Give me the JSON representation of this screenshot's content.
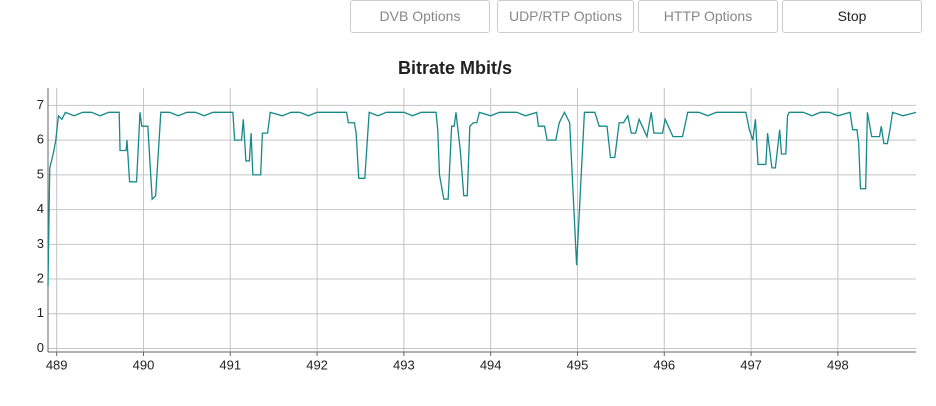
{
  "buttons": [
    "DVB Options",
    "UDP/RTP Options",
    "HTTP Options",
    "Stop"
  ],
  "chart_data": {
    "type": "line",
    "title": "Bitrate Mbit/s",
    "x": [
      488.9,
      488.92,
      488.96,
      488.99,
      489.02,
      489.06,
      489.1,
      489.2,
      489.3,
      489.4,
      489.5,
      489.6,
      489.72,
      489.73,
      489.8,
      489.81,
      489.84,
      489.92,
      489.96,
      489.98,
      490.05,
      490.1,
      490.14,
      490.2,
      490.3,
      490.4,
      490.5,
      490.6,
      490.7,
      490.8,
      490.9,
      491.03,
      491.05,
      491.13,
      491.15,
      491.18,
      491.22,
      491.24,
      491.26,
      491.35,
      491.37,
      491.43,
      491.46,
      491.6,
      491.7,
      491.8,
      491.9,
      492.0,
      492.1,
      492.2,
      492.34,
      492.36,
      492.43,
      492.45,
      492.48,
      492.55,
      492.6,
      492.7,
      492.8,
      492.9,
      493.0,
      493.1,
      493.2,
      493.37,
      493.39,
      493.41,
      493.46,
      493.51,
      493.55,
      493.58,
      493.6,
      493.65,
      493.69,
      493.73,
      493.76,
      493.8,
      493.84,
      493.87,
      494.0,
      494.1,
      494.2,
      494.3,
      494.4,
      494.53,
      494.55,
      494.62,
      494.65,
      494.75,
      494.79,
      494.85,
      494.91,
      494.99,
      495.08,
      495.2,
      495.25,
      495.34,
      495.38,
      495.43,
      495.48,
      495.53,
      495.58,
      495.62,
      495.67,
      495.71,
      495.8,
      495.85,
      495.88,
      495.98,
      496.01,
      496.1,
      496.21,
      496.27,
      496.4,
      496.5,
      496.6,
      496.7,
      496.94,
      496.98,
      497.02,
      497.05,
      497.08,
      497.17,
      497.19,
      497.24,
      497.28,
      497.33,
      497.35,
      497.4,
      497.42,
      497.44,
      497.6,
      497.7,
      497.8,
      497.9,
      498.0,
      498.14,
      498.17,
      498.22,
      498.24,
      498.26,
      498.32,
      498.34,
      498.39,
      498.48,
      498.5,
      498.53,
      498.57,
      498.6,
      498.63,
      498.75,
      498.9
    ],
    "series": [
      {
        "name": "Bitrate",
        "color": "#17898a",
        "values": [
          1.8,
          5.2,
          5.6,
          6.0,
          6.7,
          6.6,
          6.8,
          6.7,
          6.8,
          6.8,
          6.7,
          6.8,
          6.8,
          5.7,
          5.7,
          6.0,
          4.8,
          4.8,
          6.8,
          6.4,
          6.4,
          4.3,
          4.4,
          6.8,
          6.8,
          6.7,
          6.8,
          6.8,
          6.7,
          6.8,
          6.8,
          6.8,
          6.0,
          6.0,
          6.6,
          5.4,
          5.4,
          6.2,
          5.0,
          5.0,
          6.2,
          6.2,
          6.8,
          6.7,
          6.8,
          6.8,
          6.7,
          6.8,
          6.8,
          6.8,
          6.8,
          6.5,
          6.5,
          6.2,
          4.9,
          4.9,
          6.8,
          6.7,
          6.8,
          6.8,
          6.8,
          6.7,
          6.8,
          6.8,
          6.3,
          5.0,
          4.3,
          4.3,
          6.4,
          6.4,
          6.8,
          5.7,
          4.4,
          4.4,
          6.4,
          6.5,
          6.5,
          6.8,
          6.7,
          6.8,
          6.8,
          6.8,
          6.7,
          6.8,
          6.4,
          6.4,
          6.0,
          6.0,
          6.5,
          6.8,
          6.5,
          2.4,
          6.8,
          6.8,
          6.4,
          6.4,
          5.5,
          5.5,
          6.5,
          6.5,
          6.7,
          6.2,
          6.2,
          6.6,
          6.1,
          6.8,
          6.2,
          6.2,
          6.6,
          6.1,
          6.1,
          6.8,
          6.8,
          6.7,
          6.8,
          6.8,
          6.8,
          6.3,
          6.0,
          6.6,
          5.3,
          5.3,
          6.2,
          5.2,
          5.2,
          6.3,
          5.6,
          5.6,
          6.7,
          6.8,
          6.8,
          6.7,
          6.8,
          6.8,
          6.7,
          6.8,
          6.3,
          6.3,
          5.9,
          4.6,
          4.6,
          6.8,
          6.1,
          6.1,
          6.4,
          5.9,
          5.9,
          6.3,
          6.8,
          6.7,
          6.8
        ]
      }
    ],
    "xlim": [
      488.9,
      498.9
    ],
    "xticks": [
      489,
      490,
      491,
      492,
      493,
      494,
      495,
      496,
      497,
      498
    ],
    "ylim": [
      -0.1,
      7.5
    ],
    "yticks": [
      0,
      1,
      2,
      3,
      4,
      5,
      6,
      7
    ],
    "grid": true
  }
}
